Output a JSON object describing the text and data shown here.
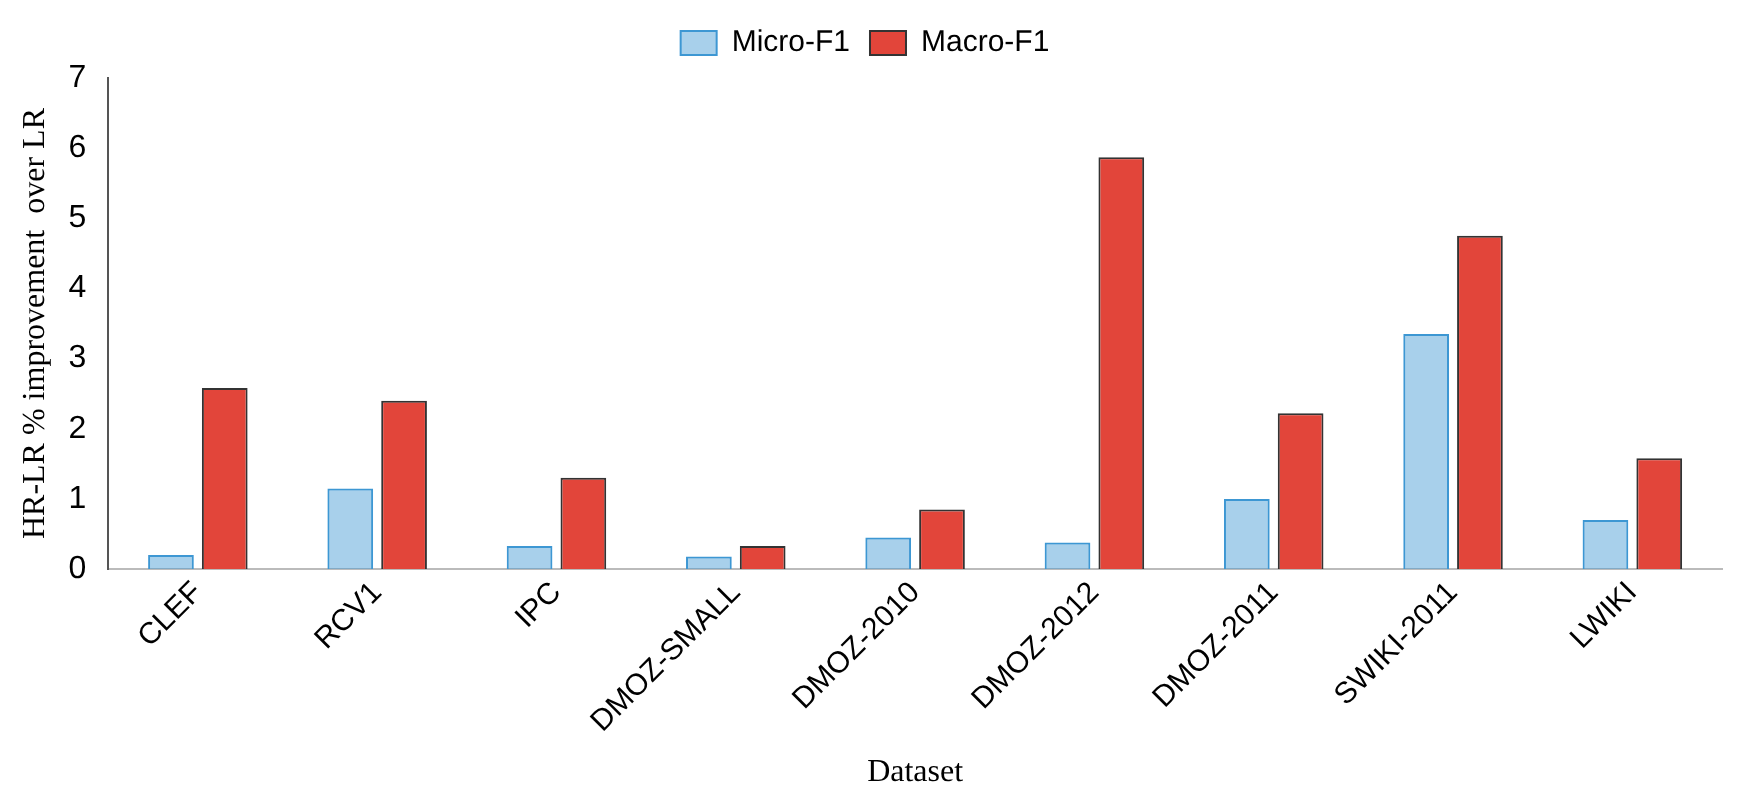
{
  "chart_data": {
    "type": "bar",
    "xlabel": "Dataset",
    "ylabel": "HR-LR % improvement  over LR",
    "categories": [
      "CLEF",
      "RCV1",
      "IPC",
      "DMOZ-SMALL",
      "DMOZ-2010",
      "DMOZ-2012",
      "DMOZ-2011",
      "SWIKI-2011",
      "LWIKI"
    ],
    "series": [
      {
        "name": "Micro-F1",
        "color": "#3d97d3",
        "values": [
          0.2,
          1.15,
          0.33,
          0.18,
          0.45,
          0.38,
          1.0,
          3.35,
          0.7
        ]
      },
      {
        "name": "Macro-F1",
        "color": "#e2453a",
        "values": [
          2.58,
          2.4,
          1.3,
          0.33,
          0.85,
          5.87,
          2.22,
          4.75,
          1.58
        ]
      }
    ],
    "ylim": [
      0,
      7
    ],
    "yticks": [
      0,
      1,
      2,
      3,
      4,
      5,
      6,
      7
    ],
    "grid": false,
    "legend": "top"
  }
}
